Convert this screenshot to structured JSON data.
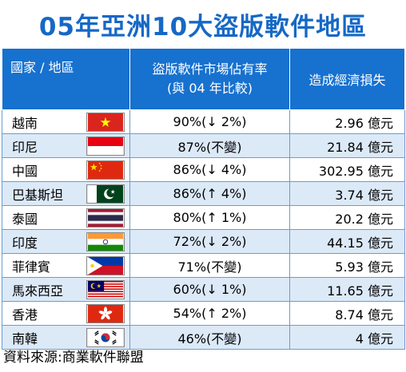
{
  "title": "05年亞洲10大盜版軟件地區",
  "header": {
    "country": "國家 / 地區",
    "share_line1": "盜版軟件市場佔有率",
    "share_line2": "(與 04 年比較)",
    "loss": "造成經濟損失"
  },
  "rows": [
    {
      "country": "越南",
      "share": "90%(↓ 2%)",
      "loss": "2.96 億元",
      "flag_icon": "vietnam-flag-icon"
    },
    {
      "country": "印尼",
      "share": "87%(不變)",
      "loss": "21.84 億元",
      "flag_icon": "indonesia-flag-icon"
    },
    {
      "country": "中國",
      "share": "86%(↓ 4%)",
      "loss": "302.95 億元",
      "flag_icon": "china-flag-icon"
    },
    {
      "country": "巴基斯坦",
      "share": "86%(↑ 4%)",
      "loss": "3.74 億元",
      "flag_icon": "pakistan-flag-icon"
    },
    {
      "country": "泰國",
      "share": "80%(↑ 1%)",
      "loss": "20.2 億元",
      "flag_icon": "thailand-flag-icon"
    },
    {
      "country": "印度",
      "share": "72%(↓ 2%)",
      "loss": "44.15 億元",
      "flag_icon": "india-flag-icon"
    },
    {
      "country": "菲律賓",
      "share": "71%(不變)",
      "loss": "5.93 億元",
      "flag_icon": "philippines-flag-icon"
    },
    {
      "country": "馬來西亞",
      "share": "60%(↓ 1%)",
      "loss": "11.65 億元",
      "flag_icon": "malaysia-flag-icon"
    },
    {
      "country": "香港",
      "share": "54%(↑ 2%)",
      "loss": "8.74 億元",
      "flag_icon": "hongkong-flag-icon"
    },
    {
      "country": "南韓",
      "share": "46%(不變)",
      "loss": "4 億元",
      "flag_icon": "southkorea-flag-icon"
    }
  ],
  "source": "資料來源:商業軟件聯盟",
  "colors": {
    "title": "#1668c6",
    "header_bg": "#1771cf",
    "stripe": "#dce9f7",
    "border": "#6d9ccc"
  }
}
